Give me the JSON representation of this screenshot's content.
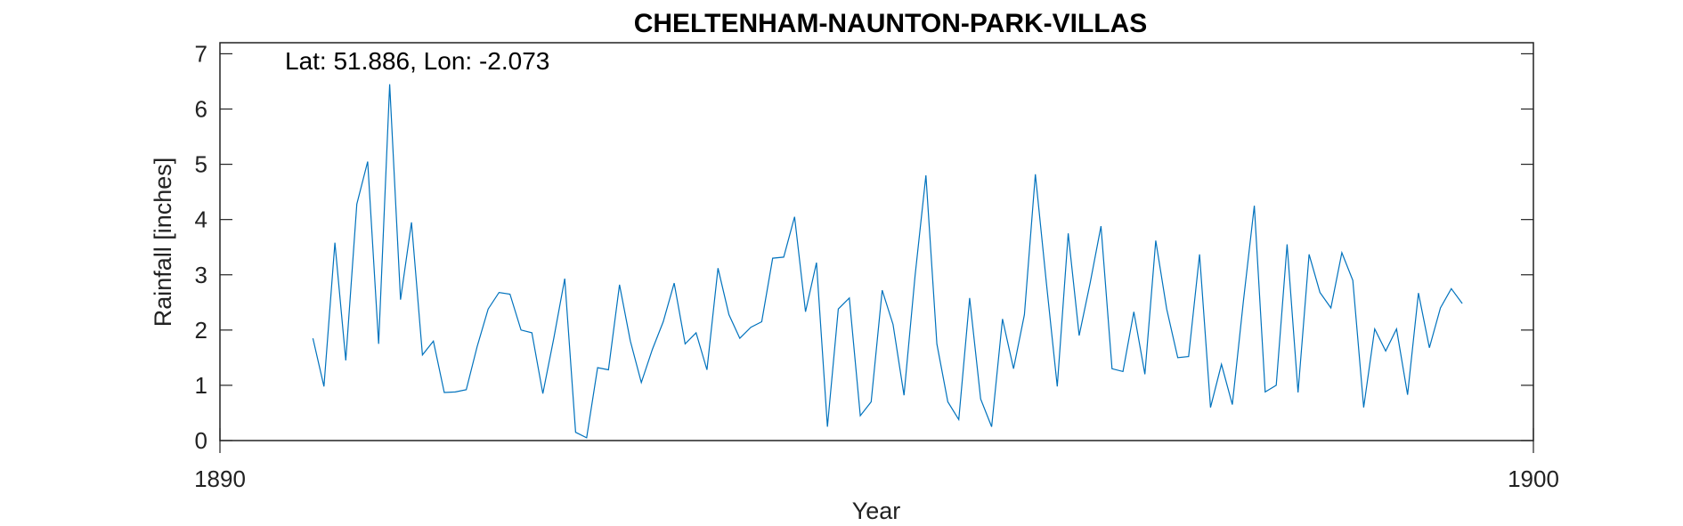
{
  "chart_data": {
    "type": "line",
    "title": "CHELTENHAM-NAUNTON-PARK-VILLAS",
    "xlabel": "Year",
    "ylabel": "Rainfall [inches]",
    "annotation": "Lat: 51.886, Lon: -2.073",
    "xlim": [
      1890,
      1900
    ],
    "ylim": [
      0,
      7.2
    ],
    "xticks": [
      1890,
      1900
    ],
    "yticks": [
      0,
      1,
      2,
      3,
      4,
      5,
      6,
      7
    ],
    "grid": false,
    "line_color": "#0072BD",
    "series": [
      {
        "x": [
          1890.708,
          1890.792,
          1890.875,
          1890.958,
          1891.042,
          1891.125,
          1891.208,
          1891.292,
          1891.375,
          1891.458,
          1891.542,
          1891.625,
          1891.708,
          1891.792,
          1891.875,
          1891.958,
          1892.042,
          1892.125,
          1892.208,
          1892.292,
          1892.375,
          1892.458,
          1892.542,
          1892.625,
          1892.708,
          1892.792,
          1892.875,
          1892.958,
          1893.042,
          1893.125,
          1893.208,
          1893.292,
          1893.375,
          1893.458,
          1893.542,
          1893.625,
          1893.708,
          1893.792,
          1893.875,
          1893.958,
          1894.042,
          1894.125,
          1894.208,
          1894.292,
          1894.375,
          1894.458,
          1894.542,
          1894.625,
          1894.708,
          1894.792,
          1894.875,
          1894.958,
          1895.042,
          1895.125,
          1895.208,
          1895.292,
          1895.375,
          1895.458,
          1895.542,
          1895.625,
          1895.708,
          1895.792,
          1895.875,
          1895.958,
          1896.042,
          1896.125,
          1896.208,
          1896.292,
          1896.375,
          1896.458,
          1896.542,
          1896.625,
          1896.708,
          1896.792,
          1896.875,
          1896.958,
          1897.042,
          1897.125,
          1897.208,
          1897.292,
          1897.375,
          1897.458,
          1897.542,
          1897.625,
          1897.708,
          1897.792,
          1897.875,
          1897.958,
          1898.042,
          1898.125,
          1898.208,
          1898.292,
          1898.375,
          1898.458,
          1898.542,
          1898.625,
          1898.708,
          1898.792,
          1898.875,
          1898.958,
          1899.042,
          1899.125,
          1899.208,
          1899.292,
          1899.375,
          1899.458
        ],
        "y": [
          1.85,
          0.98,
          3.58,
          1.45,
          4.28,
          5.05,
          1.75,
          6.45,
          2.55,
          3.95,
          1.55,
          1.8,
          0.87,
          0.88,
          0.92,
          1.7,
          2.38,
          2.68,
          2.65,
          2.0,
          1.95,
          0.85,
          1.85,
          2.93,
          0.15,
          0.05,
          1.32,
          1.28,
          2.82,
          1.8,
          1.05,
          1.65,
          2.15,
          2.85,
          1.75,
          1.95,
          1.28,
          3.12,
          2.28,
          1.85,
          2.05,
          2.15,
          3.3,
          3.32,
          4.05,
          2.33,
          3.22,
          0.25,
          2.38,
          2.58,
          0.45,
          0.7,
          2.72,
          2.1,
          0.82,
          2.98,
          4.8,
          1.75,
          0.7,
          0.38,
          2.58,
          0.75,
          0.25,
          2.2,
          1.3,
          2.28,
          4.82,
          2.85,
          0.98,
          3.75,
          1.9,
          2.85,
          3.88,
          1.3,
          1.25,
          2.33,
          1.2,
          3.62,
          2.38,
          1.5,
          1.52,
          3.37,
          0.6,
          1.38,
          0.65,
          2.52,
          4.25,
          0.88,
          1.0,
          3.55,
          0.87,
          3.37,
          2.68,
          2.4,
          3.4,
          2.9,
          0.6,
          2.02,
          1.62,
          2.02,
          0.83,
          2.67,
          1.68,
          2.4,
          2.75,
          2.48
        ]
      }
    ]
  }
}
